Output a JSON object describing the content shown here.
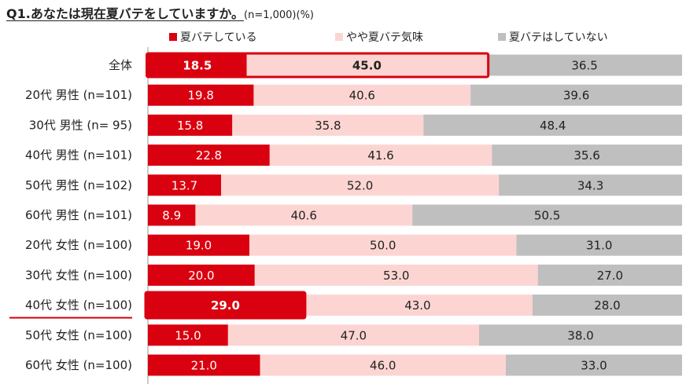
{
  "title": "Q1.あなたは現在夏バテをしていますか。",
  "subtitle": "(n=1,000)(%)",
  "colors": {
    "series1": "#d9000f",
    "series2": "#fcd5d2",
    "series3": "#bfbfbf",
    "highlight": "#d9000f"
  },
  "chart_data": {
    "type": "bar",
    "orientation": "horizontal",
    "stacked": true,
    "percent": true,
    "title": "Q1.あなたは現在夏バテをしていますか。",
    "subtitle": "(n=1,000)(%)",
    "legend_position": "top",
    "xlim": [
      0,
      100
    ],
    "categories": [
      "全体",
      "20代 男性 (n=101)",
      "30代 男性 (n=  95)",
      "40代 男性 (n=101)",
      "50代 男性 (n=102)",
      "60代 男性 (n=101)",
      "20代 女性 (n=100)",
      "30代 女性 (n=100)",
      "40代 女性 (n=100)",
      "50代 女性 (n=100)",
      "60代 女性 (n=100)"
    ],
    "series": [
      {
        "name": "夏バテしている",
        "values": [
          18.5,
          19.8,
          15.8,
          22.8,
          13.7,
          8.9,
          19.0,
          20.0,
          29.0,
          15.0,
          21.0
        ]
      },
      {
        "name": "やや夏バテ気味",
        "values": [
          45.0,
          40.6,
          35.8,
          41.6,
          52.0,
          40.6,
          50.0,
          53.0,
          43.0,
          47.0,
          46.0
        ]
      },
      {
        "name": "夏バテはしていない",
        "values": [
          36.5,
          39.6,
          48.4,
          35.6,
          34.3,
          50.5,
          31.0,
          27.0,
          28.0,
          38.0,
          33.0
        ]
      }
    ],
    "labels": [
      [
        "18.5",
        "45.0",
        "36.5"
      ],
      [
        "19.8",
        "40.6",
        "39.6"
      ],
      [
        "15.8",
        "35.8",
        "48.4"
      ],
      [
        "22.8",
        "41.6",
        "35.6"
      ],
      [
        "13.7",
        "52.0",
        "34.3"
      ],
      [
        "8.9",
        "40.6",
        "50.5"
      ],
      [
        "19.0",
        "50.0",
        "31.0"
      ],
      [
        "20.0",
        "53.0",
        "27.0"
      ],
      [
        "29.0",
        "43.0",
        "28.0"
      ],
      [
        "15.0",
        "47.0",
        "38.0"
      ],
      [
        "21.0",
        "46.0",
        "33.0"
      ]
    ],
    "highlights": [
      {
        "category": "全体",
        "series": [
          "夏バテしている",
          "やや夏バテ気味"
        ]
      },
      {
        "category": "40代 女性 (n=100)",
        "series": [
          "夏バテしている"
        ],
        "underline_label": true
      }
    ]
  }
}
